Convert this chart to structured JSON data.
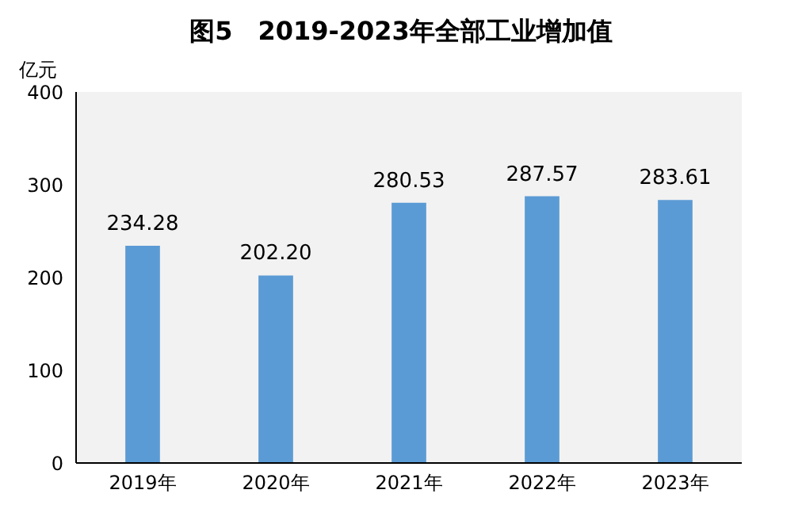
{
  "chart_data": {
    "type": "bar",
    "title": "图5　2019-2023年全部工业增加值",
    "ylabel": "亿元",
    "categories": [
      "2019年",
      "2020年",
      "2021年",
      "2022年",
      "2023年"
    ],
    "values": [
      234.28,
      202.2,
      280.53,
      287.57,
      283.61
    ],
    "value_labels": [
      "234.28",
      "202.20",
      "280.53",
      "287.57",
      "283.61"
    ],
    "color": "#5b9bd5",
    "ylim": [
      0,
      400
    ],
    "yticks": [
      0,
      100,
      200,
      300,
      400
    ],
    "grid": false
  }
}
